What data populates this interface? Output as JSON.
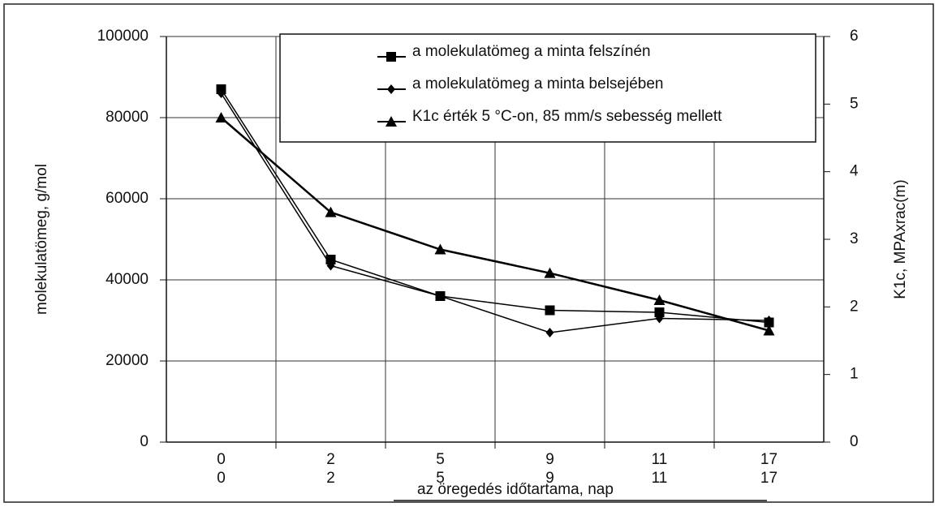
{
  "chart_data": {
    "type": "line",
    "categories": [
      "0",
      "2",
      "5",
      "9",
      "11",
      "17"
    ],
    "series": [
      {
        "name": "a molekulatömeg a minta felszínén",
        "color": "#000000",
        "marker": "square",
        "values": [
          87000,
          45000,
          36000,
          32500,
          32000,
          29500
        ]
      },
      {
        "name": "a molekulatömeg a minta belsejében",
        "color": "#000000",
        "marker": "diamond",
        "values": [
          86000,
          43500,
          36000,
          27000,
          30500,
          30000
        ]
      },
      {
        "name": "K1c érték 5 °C-on, 85 mm/s sebesség mellett",
        "color": "#000000",
        "marker": "triangle",
        "axis": "y2",
        "values": [
          4.8,
          3.4,
          2.85,
          2.5,
          2.1,
          1.65
        ]
      }
    ],
    "ylabel": "molekulatömeg, g/mol",
    "y2label": "K1c, MPAxrac(m)",
    "xlabel": "az öregedés időtartama, nap",
    "ylim": [
      0,
      100000
    ],
    "yticks": [
      0,
      20000,
      40000,
      60000,
      80000,
      100000
    ],
    "y2lim": [
      0,
      6
    ],
    "y2ticks": [
      0,
      1,
      2,
      3,
      4,
      5,
      6
    ],
    "grid": true,
    "legend": "top-right"
  }
}
